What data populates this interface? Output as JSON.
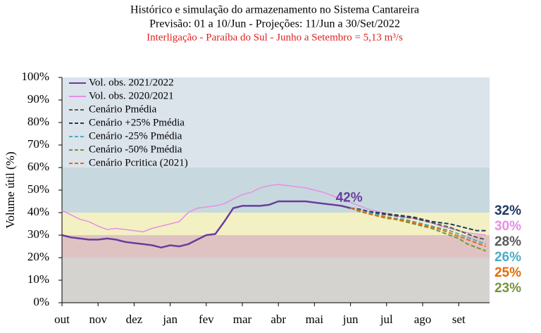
{
  "chart_data": {
    "type": "line",
    "title": "Histórico e simulação do armazenamento no Sistema Cantareira",
    "subtitle": "Previsão: 01 a 10/Jun - Projeções: 11/Jun a 30/Set/2022",
    "note": "Interligação - Paraíba do Sul - Junho a Setembro = 5,13 m³/s",
    "y_label": "Volume útil (%)",
    "annotation": "42%",
    "categories": [
      "out",
      null,
      null,
      null,
      "nov",
      null,
      null,
      null,
      "dez",
      null,
      null,
      null,
      "jan",
      null,
      null,
      null,
      "fev",
      null,
      null,
      null,
      "mar",
      null,
      null,
      null,
      "abr",
      null,
      null,
      null,
      "mai",
      null,
      null,
      null,
      "jun",
      null,
      null,
      null,
      "jul",
      null,
      null,
      null,
      "ago",
      null,
      null,
      null,
      "set",
      null,
      null,
      null
    ],
    "ylim": [
      0,
      100
    ],
    "yticks": [
      {
        "value": 0,
        "label": "0%"
      },
      {
        "value": 10,
        "label": "10%"
      },
      {
        "value": 20,
        "label": "20%"
      },
      {
        "value": 30,
        "label": "30%"
      },
      {
        "value": 40,
        "label": "40%"
      },
      {
        "value": 50,
        "label": "50%"
      },
      {
        "value": 60,
        "label": "60%"
      },
      {
        "value": 70,
        "label": "70%"
      },
      {
        "value": 80,
        "label": "80%"
      },
      {
        "value": 90,
        "label": "90%"
      },
      {
        "value": 100,
        "label": "100%"
      }
    ],
    "bands": [
      {
        "from": 60,
        "to": 100,
        "color": "#dbe3eb"
      },
      {
        "from": 40,
        "to": 60,
        "color": "#c7d9de"
      },
      {
        "from": 30,
        "to": 40,
        "color": "#f3f0c4"
      },
      {
        "from": 20,
        "to": 30,
        "color": "#dfc3c3"
      },
      {
        "from": 0,
        "to": 20,
        "color": "#d5d3cf"
      }
    ],
    "legend": "upper left",
    "series": [
      {
        "name": "Vol. obs. 2021/2022",
        "color": "#6a3d9a",
        "dash": false,
        "values": [
          30,
          29,
          28.5,
          28,
          28,
          28.5,
          28,
          27,
          26.5,
          26,
          25.5,
          24.5,
          25.5,
          25,
          26,
          28,
          30,
          30.5,
          36,
          42,
          43,
          43,
          43,
          43.5,
          45,
          45,
          45,
          45,
          44.5,
          44,
          43.5,
          43,
          42,
          null,
          null,
          null,
          null,
          null,
          null,
          null,
          null,
          null,
          null,
          null,
          null,
          null,
          null,
          null
        ]
      },
      {
        "name": "Vol. obs. 2020/2021",
        "color": "#e68ee6",
        "dash": false,
        "end_label": "30%",
        "values": [
          41,
          39,
          37,
          36,
          34,
          32.5,
          33,
          32.5,
          32,
          31.5,
          33,
          34,
          35,
          36,
          40,
          42,
          42.5,
          43,
          44,
          46,
          48,
          49,
          51,
          52,
          52.5,
          52,
          51.5,
          51,
          50,
          49,
          47.5,
          46,
          44.5,
          43,
          41.5,
          40.5,
          39.5,
          38.5,
          38,
          37.5,
          36.5,
          35.5,
          34,
          33,
          32,
          31,
          30.5,
          30
        ]
      },
      {
        "name": "Cenário Pmédia",
        "color": "#595959",
        "dash": true,
        "end_label": "28%",
        "values": [
          null,
          null,
          null,
          null,
          null,
          null,
          null,
          null,
          null,
          null,
          null,
          null,
          null,
          null,
          null,
          null,
          null,
          null,
          null,
          null,
          null,
          null,
          null,
          null,
          null,
          null,
          null,
          null,
          null,
          null,
          null,
          null,
          42,
          41,
          40,
          39.5,
          39,
          38.5,
          38,
          37.5,
          36.5,
          35.5,
          34.5,
          33.5,
          32,
          30.5,
          29,
          28
        ]
      },
      {
        "name": "Cenário +25% Pmédia",
        "color": "#1f3864",
        "dash": true,
        "end_label": "32%",
        "values": [
          null,
          null,
          null,
          null,
          null,
          null,
          null,
          null,
          null,
          null,
          null,
          null,
          null,
          null,
          null,
          null,
          null,
          null,
          null,
          null,
          null,
          null,
          null,
          null,
          null,
          null,
          null,
          null,
          null,
          null,
          null,
          null,
          42,
          41.5,
          40.5,
          40,
          39.5,
          39,
          38.5,
          38,
          37,
          36,
          35.5,
          35,
          34,
          33,
          32,
          32
        ]
      },
      {
        "name": "Cenário -25% Pmédia",
        "color": "#4bacc6",
        "dash": true,
        "end_label": "26%",
        "values": [
          null,
          null,
          null,
          null,
          null,
          null,
          null,
          null,
          null,
          null,
          null,
          null,
          null,
          null,
          null,
          null,
          null,
          null,
          null,
          null,
          null,
          null,
          null,
          null,
          null,
          null,
          null,
          null,
          null,
          null,
          null,
          null,
          42,
          41,
          40,
          39,
          38,
          37.5,
          37,
          36,
          35,
          34,
          33,
          32,
          30.5,
          29,
          27.5,
          26
        ]
      },
      {
        "name": "Cenário -50% Pmédia",
        "color": "#77933c",
        "dash": true,
        "end_label": "23%",
        "values": [
          null,
          null,
          null,
          null,
          null,
          null,
          null,
          null,
          null,
          null,
          null,
          null,
          null,
          null,
          null,
          null,
          null,
          null,
          null,
          null,
          null,
          null,
          null,
          null,
          null,
          null,
          null,
          null,
          null,
          null,
          null,
          null,
          42,
          40.5,
          39.5,
          38.5,
          37.5,
          37,
          36,
          35,
          34,
          33,
          31.5,
          30,
          28.5,
          26,
          24.5,
          23
        ]
      },
      {
        "name": "Cenário Pcritica (2021)",
        "color": "#e36c09",
        "dash": true,
        "end_label": "25%",
        "values": [
          null,
          null,
          null,
          null,
          null,
          null,
          null,
          null,
          null,
          null,
          null,
          null,
          null,
          null,
          null,
          null,
          null,
          null,
          null,
          null,
          null,
          null,
          null,
          null,
          null,
          null,
          null,
          null,
          null,
          null,
          null,
          null,
          42,
          41,
          39.5,
          38.5,
          38,
          37,
          36.5,
          35.5,
          34.5,
          33.5,
          32.5,
          31,
          29.5,
          28,
          26.5,
          25
        ]
      }
    ]
  }
}
